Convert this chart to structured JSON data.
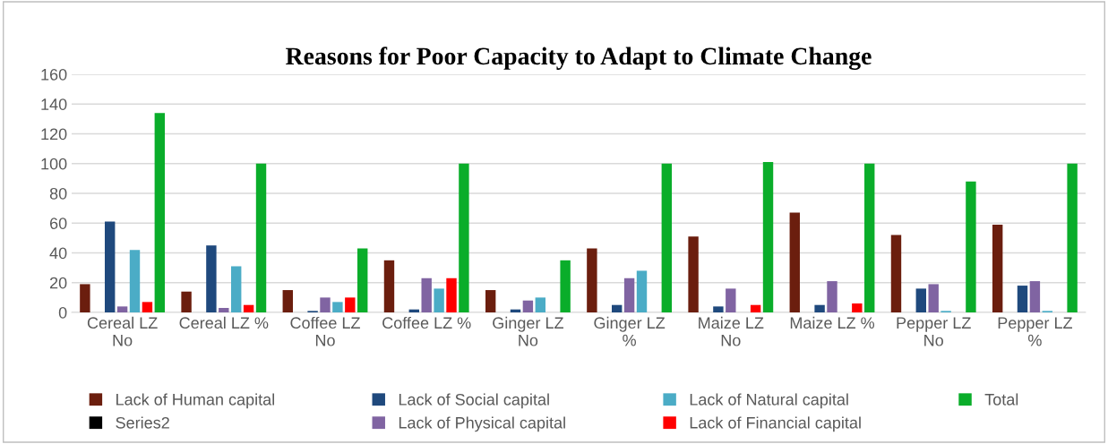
{
  "chart_data": {
    "type": "bar",
    "title": "Reasons for Poor Capacity to Adapt to Climate Change",
    "categories": [
      "Cereal LZ\nNo",
      "Cereal LZ %",
      "Coffee LZ\nNo",
      "Coffee LZ %",
      "Ginger LZ\nNo",
      "Ginger LZ\n%",
      "Maize LZ\nNo",
      "Maize LZ %",
      "Pepper LZ\nNo",
      "Pepper LZ\n%"
    ],
    "series": [
      {
        "name": "Lack of Human capital",
        "color": "#6b1e0e",
        "values": [
          19,
          14,
          15,
          35,
          15,
          43,
          51,
          67,
          52,
          59
        ]
      },
      {
        "name": "Series2",
        "color": "#000000",
        "values": [
          null,
          null,
          null,
          null,
          null,
          null,
          null,
          null,
          null,
          null
        ]
      },
      {
        "name": "Lack of Social capital",
        "color": "#1f497d",
        "values": [
          61,
          45,
          1,
          2,
          2,
          5,
          4,
          5,
          16,
          18
        ]
      },
      {
        "name": "Lack of Physical capital",
        "color": "#8064a2",
        "values": [
          4,
          3,
          10,
          23,
          8,
          23,
          16,
          21,
          19,
          21
        ]
      },
      {
        "name": "Lack of Natural capital",
        "color": "#4bacc6",
        "values": [
          42,
          31,
          7,
          16,
          10,
          28,
          null,
          null,
          1,
          1
        ]
      },
      {
        "name": "Lack of Financial capital",
        "color": "#ff0000",
        "values": [
          7,
          5,
          10,
          23,
          null,
          null,
          5,
          6,
          null,
          null
        ]
      },
      {
        "name": "Total",
        "color": "#0aad2a",
        "values": [
          134,
          100,
          43,
          100,
          35,
          100,
          101,
          100,
          88,
          100
        ]
      }
    ],
    "ylim": [
      0,
      160
    ],
    "yticks": [
      0,
      20,
      40,
      60,
      80,
      100,
      120,
      140,
      160
    ],
    "grid": "y",
    "legend": "bottom"
  }
}
